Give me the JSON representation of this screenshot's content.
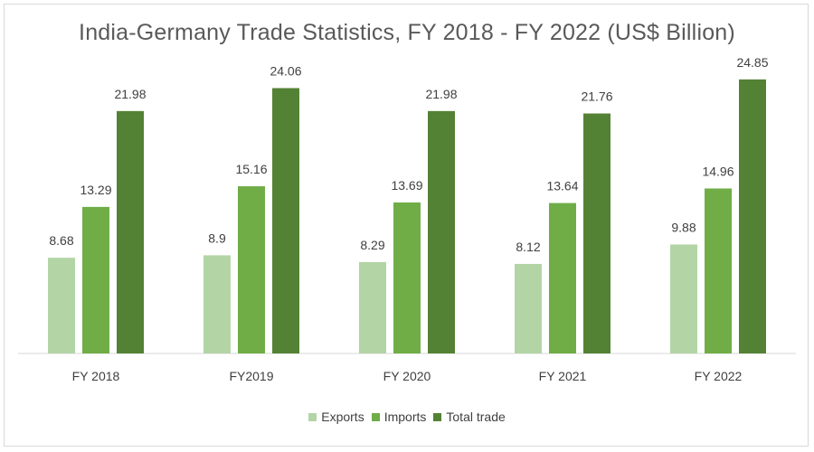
{
  "chart_data": {
    "type": "bar",
    "title": "India-Germany Trade Statistics, FY 2018 - FY 2022 (US$ Billion)",
    "categories": [
      "FY 2018",
      "FY2019",
      "FY 2020",
      "FY 2021",
      "FY 2022"
    ],
    "series": [
      {
        "name": "Exports",
        "values": [
          8.68,
          8.9,
          8.29,
          8.12,
          9.88
        ],
        "labels": [
          "8.68",
          "8.9",
          "8.29",
          "8.12",
          "9.88"
        ],
        "color": "#b3d5a6"
      },
      {
        "name": "Imports",
        "values": [
          13.29,
          15.16,
          13.69,
          13.64,
          14.96
        ],
        "labels": [
          "13.29",
          "15.16",
          "13.69",
          "13.64",
          "14.96"
        ],
        "color": "#70ad47"
      },
      {
        "name": "Total trade",
        "values": [
          21.98,
          24.06,
          21.98,
          21.76,
          24.85
        ],
        "labels": [
          "21.98",
          "24.06",
          "21.98",
          "21.76",
          "24.85"
        ],
        "color": "#548235"
      }
    ],
    "xlabel": "",
    "ylabel": "",
    "ylim": [
      0,
      30
    ],
    "grid": false,
    "legend_position": "bottom"
  }
}
